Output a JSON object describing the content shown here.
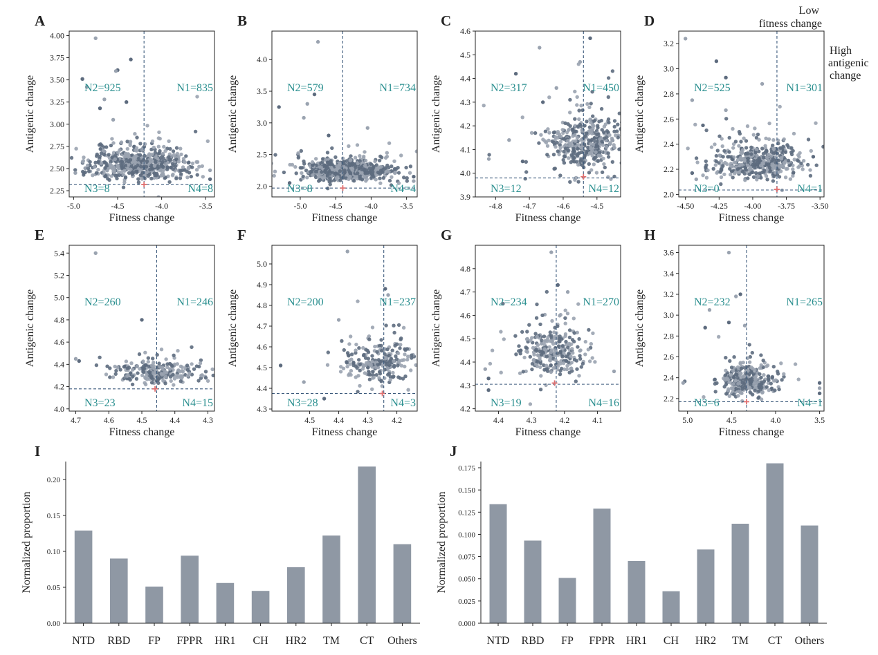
{
  "annotations": {
    "low_fitness": "Low\nfitness change",
    "high_antigenic": "High\nantigenic\nchange"
  },
  "colors": {
    "dot_dark": "#5d6b7e",
    "dot_light": "#9aa3b0",
    "threshold": "#3c5a7c",
    "quadrant_text": "#2a8f8f",
    "marker": "#e07070",
    "bar": "#8f98a4"
  },
  "chart_data": [
    {
      "id": "A",
      "type": "scatter",
      "panel_label": "A",
      "xlabel": "Fitness change",
      "ylabel": "Antigenic change",
      "xlim": [
        -5.05,
        -3.4
      ],
      "ylim": [
        2.18,
        4.05
      ],
      "xticks": [
        -5.0,
        -4.5,
        -4.0,
        -3.5
      ],
      "xtick_labels": [
        "-5.0",
        "-4.5",
        "-4.0",
        "-3.5"
      ],
      "yticks": [
        2.25,
        2.5,
        2.75,
        3.0,
        3.25,
        3.5,
        3.75,
        4.0
      ],
      "ytick_labels": [
        "2.25",
        "2.50",
        "2.75",
        "3.00",
        "3.25",
        "3.50",
        "3.75",
        "4.00"
      ],
      "threshold_x": -4.2,
      "threshold_y": 2.32,
      "marker": [
        -4.2,
        2.32
      ],
      "cluster": {
        "cx": -4.25,
        "cy": 2.5,
        "sx": 0.28,
        "sy": 0.12,
        "n": 600,
        "seed": 11
      },
      "outliers": [
        [
          -4.75,
          3.97
        ],
        [
          -4.9,
          3.51
        ],
        [
          -4.85,
          3.42
        ],
        [
          -4.5,
          3.61
        ],
        [
          -4.52,
          3.6
        ],
        [
          -4.35,
          3.73
        ],
        [
          -4.65,
          3.28
        ],
        [
          -4.7,
          3.18
        ],
        [
          -4.55,
          3.05
        ],
        [
          -4.4,
          3.25
        ],
        [
          -3.45,
          2.48
        ],
        [
          -3.45,
          2.38
        ],
        [
          -4.98,
          2.45
        ]
      ],
      "quadrants": {
        "N1": "N1=835",
        "N2": "N2=925",
        "N3": "N3=8",
        "N4": "N4=8"
      }
    },
    {
      "id": "B",
      "type": "scatter",
      "panel_label": "B",
      "xlabel": "Fitness change",
      "ylabel": "Antigenic change",
      "xlim": [
        -5.4,
        -3.35
      ],
      "ylim": [
        1.83,
        4.45
      ],
      "xticks": [
        -5.0,
        -4.5,
        -4.0,
        -3.5
      ],
      "xtick_labels": [
        "-5.0",
        "-4.5",
        "-4.0",
        "-3.5"
      ],
      "yticks": [
        2.0,
        2.5,
        3.0,
        3.5,
        4.0
      ],
      "ytick_labels": [
        "2.0",
        "2.5",
        "3.0",
        "3.5",
        "4.0"
      ],
      "threshold_x": -4.4,
      "threshold_y": 1.97,
      "marker": [
        -4.4,
        1.97
      ],
      "cluster": {
        "cx": -4.35,
        "cy": 2.2,
        "sx": 0.3,
        "sy": 0.1,
        "n": 650,
        "seed": 22
      },
      "outliers": [
        [
          -4.75,
          4.28
        ],
        [
          -4.8,
          3.45
        ],
        [
          -4.9,
          3.3
        ],
        [
          -5.3,
          3.25
        ],
        [
          -4.95,
          3.08
        ],
        [
          -4.6,
          2.8
        ],
        [
          -4.05,
          2.92
        ],
        [
          -3.4,
          2.15
        ],
        [
          -3.4,
          2.08
        ],
        [
          -5.15,
          2.05
        ]
      ],
      "quadrants": {
        "N1": "N1=734",
        "N2": "N2=579",
        "N3": "N3=8",
        "N4": "N4=4"
      }
    },
    {
      "id": "C",
      "type": "scatter",
      "panel_label": "C",
      "xlabel": "Fitness change",
      "ylabel": "Antigenic change",
      "xlim": [
        -4.86,
        -4.43
      ],
      "ylim": [
        3.9,
        4.6
      ],
      "xticks": [
        -4.8,
        -4.7,
        -4.6,
        -4.5
      ],
      "xtick_labels": [
        "-4.8",
        "-4.7",
        "-4.6",
        "-4.5"
      ],
      "yticks": [
        3.9,
        4.0,
        4.1,
        4.2,
        4.3,
        4.4,
        4.5,
        4.6
      ],
      "ytick_labels": [
        "3.9",
        "4.0",
        "4.1",
        "4.2",
        "4.3",
        "4.4",
        "4.5",
        "4.6"
      ],
      "threshold_x": -4.54,
      "threshold_y": 3.98,
      "marker": [
        -4.54,
        3.985
      ],
      "cluster": {
        "cx": -4.53,
        "cy": 4.1,
        "sx": 0.055,
        "sy": 0.07,
        "n": 420,
        "seed": 33
      },
      "outliers": [
        [
          -4.67,
          4.53
        ],
        [
          -4.52,
          4.57
        ],
        [
          -4.55,
          4.47
        ],
        [
          -4.74,
          4.42
        ],
        [
          -4.82,
          4.06
        ],
        [
          -4.72,
          4.05
        ],
        [
          -4.76,
          4.14
        ],
        [
          -4.66,
          4.3
        ],
        [
          -4.62,
          4.36
        ]
      ],
      "quadrants": {
        "N1": "N1=450",
        "N2": "N2=317",
        "N3": "N3=12",
        "N4": "N4=12"
      }
    },
    {
      "id": "D",
      "type": "scatter",
      "panel_label": "D",
      "xlabel": "Fitness change",
      "ylabel": "Antigenic change",
      "xlim": [
        -4.55,
        -3.47
      ],
      "ylim": [
        1.98,
        3.3
      ],
      "xticks": [
        -4.5,
        -4.25,
        -4.0,
        -3.75,
        -3.5
      ],
      "xtick_labels": [
        "-4.50",
        "-4.25",
        "-4.00",
        "-3.75",
        "-3.50"
      ],
      "yticks": [
        2.0,
        2.2,
        2.4,
        2.6,
        2.8,
        3.0,
        3.2
      ],
      "ytick_labels": [
        "2.0",
        "2.2",
        "2.4",
        "2.6",
        "2.8",
        "3.0",
        "3.2"
      ],
      "threshold_x": -3.82,
      "threshold_y": 2.035,
      "marker": [
        -3.82,
        2.04
      ],
      "cluster": {
        "cx": -3.95,
        "cy": 2.22,
        "sx": 0.16,
        "sy": 0.1,
        "n": 450,
        "seed": 44
      },
      "outliers": [
        [
          -4.5,
          3.24
        ],
        [
          -4.27,
          3.06
        ],
        [
          -3.93,
          2.88
        ],
        [
          -4.2,
          2.93
        ],
        [
          -4.45,
          2.75
        ],
        [
          -4.37,
          2.55
        ],
        [
          -4.2,
          2.67
        ],
        [
          -4.45,
          2.17
        ],
        [
          -4.42,
          2.12
        ],
        [
          -3.55,
          2.3
        ]
      ],
      "quadrants": {
        "N1": "N1=301",
        "N2": "N2=525",
        "N3": "N3=0",
        "N4": "N4=1"
      }
    },
    {
      "id": "E",
      "type": "scatter",
      "panel_label": "E",
      "xlabel": "Fitness change",
      "ylabel": "Antigenic change",
      "xlim": [
        4.72,
        4.28
      ],
      "ylim": [
        3.98,
        5.47
      ],
      "xticks": [
        4.7,
        4.6,
        4.5,
        4.4,
        4.3
      ],
      "xtick_labels": [
        "4.7",
        "4.6",
        "4.5",
        "4.4",
        "4.3"
      ],
      "yticks": [
        4.0,
        4.2,
        4.4,
        4.6,
        4.8,
        5.0,
        5.2,
        5.4
      ],
      "ytick_labels": [
        "4.0",
        "4.2",
        "4.4",
        "4.6",
        "4.8",
        "5.0",
        "5.2",
        "5.4"
      ],
      "threshold_x": 4.455,
      "threshold_y": 4.18,
      "marker": [
        4.46,
        4.18
      ],
      "cluster": {
        "cx": 4.47,
        "cy": 4.3,
        "sx": 0.07,
        "sy": 0.07,
        "n": 240,
        "seed": 55
      },
      "outliers": [
        [
          4.64,
          5.4
        ],
        [
          4.5,
          4.8
        ],
        [
          4.7,
          4.45
        ],
        [
          4.69,
          4.43
        ],
        [
          4.32,
          4.3
        ]
      ],
      "quadrants": {
        "N1": "N1=246",
        "N2": "N2=260",
        "N3": "N3=23",
        "N4": "N4=15"
      }
    },
    {
      "id": "F",
      "type": "scatter",
      "panel_label": "F",
      "xlabel": "Fitness change",
      "ylabel": "Antigenic change",
      "xlim": [
        4.63,
        4.13
      ],
      "ylim": [
        4.29,
        5.09
      ],
      "xticks": [
        4.5,
        4.4,
        4.3,
        4.2
      ],
      "xtick_labels": [
        "4.5",
        "4.4",
        "4.3",
        "4.2"
      ],
      "yticks": [
        4.3,
        4.4,
        4.5,
        4.6,
        4.7,
        4.8,
        4.9,
        5.0
      ],
      "ytick_labels": [
        "4.3",
        "4.4",
        "4.5",
        "4.6",
        "4.7",
        "4.8",
        "4.9",
        "5.0"
      ],
      "threshold_x": 4.245,
      "threshold_y": 4.375,
      "marker": [
        4.25,
        4.375
      ],
      "cluster": {
        "cx": 4.26,
        "cy": 4.5,
        "sx": 0.06,
        "sy": 0.07,
        "n": 240,
        "seed": 66
      },
      "outliers": [
        [
          4.37,
          5.06
        ],
        [
          4.24,
          4.88
        ],
        [
          4.23,
          4.85
        ],
        [
          4.6,
          4.51
        ],
        [
          4.52,
          4.43
        ],
        [
          4.45,
          4.35
        ],
        [
          4.4,
          4.73
        ]
      ],
      "quadrants": {
        "N1": "N1=237",
        "N2": "N2=200",
        "N3": "N3=28",
        "N4": "N4=3"
      }
    },
    {
      "id": "G",
      "type": "scatter",
      "panel_label": "G",
      "xlabel": "Fitness change",
      "ylabel": "Antigenic change",
      "xlim": [
        4.47,
        4.03
      ],
      "ylim": [
        4.19,
        4.9
      ],
      "xticks": [
        4.4,
        4.3,
        4.2,
        4.1
      ],
      "xtick_labels": [
        "4.4",
        "4.3",
        "4.2",
        "4.1"
      ],
      "yticks": [
        4.2,
        4.3,
        4.4,
        4.5,
        4.6,
        4.7,
        4.8
      ],
      "ytick_labels": [
        "4.2",
        "4.3",
        "4.4",
        "4.5",
        "4.6",
        "4.7",
        "4.8"
      ],
      "threshold_x": 4.225,
      "threshold_y": 4.305,
      "marker": [
        4.23,
        4.31
      ],
      "cluster": {
        "cx": 4.235,
        "cy": 4.42,
        "sx": 0.05,
        "sy": 0.08,
        "n": 270,
        "seed": 77
      },
      "outliers": [
        [
          4.24,
          4.87
        ],
        [
          4.22,
          4.73
        ],
        [
          4.44,
          4.37
        ],
        [
          4.43,
          4.33
        ],
        [
          4.05,
          4.36
        ],
        [
          4.43,
          4.28
        ],
        [
          4.19,
          4.7
        ]
      ],
      "quadrants": {
        "N1": "N1=270",
        "N2": "N2=234",
        "N3": "N3=19",
        "N4": "N4=16"
      }
    },
    {
      "id": "H",
      "type": "scatter",
      "panel_label": "H",
      "xlabel": "Fitness change",
      "ylabel": "Antigenic change",
      "xlim": [
        5.1,
        3.45
      ],
      "ylim": [
        2.08,
        3.67
      ],
      "xticks": [
        5.0,
        4.5,
        4.0,
        3.5
      ],
      "xtick_labels": [
        "5.0",
        "4.5",
        "4.0",
        "3.5"
      ],
      "yticks": [
        2.2,
        2.4,
        2.6,
        2.8,
        3.0,
        3.2,
        3.4,
        3.6
      ],
      "ytick_labels": [
        "2.2",
        "2.4",
        "2.6",
        "2.8",
        "3.0",
        "3.2",
        "3.4",
        "3.6"
      ],
      "threshold_x": 4.33,
      "threshold_y": 2.17,
      "marker": [
        4.33,
        2.17
      ],
      "cluster": {
        "cx": 4.33,
        "cy": 2.33,
        "sx": 0.17,
        "sy": 0.1,
        "n": 300,
        "seed": 88
      },
      "outliers": [
        [
          4.53,
          3.6
        ],
        [
          4.4,
          3.2
        ],
        [
          4.45,
          3.18
        ],
        [
          4.53,
          2.93
        ],
        [
          4.75,
          3.05
        ],
        [
          4.8,
          2.88
        ],
        [
          5.05,
          2.35
        ],
        [
          3.5,
          2.35
        ],
        [
          3.5,
          2.3
        ],
        [
          3.5,
          2.25
        ],
        [
          4.35,
          2.9
        ]
      ],
      "quadrants": {
        "N1": "N1=265",
        "N2": "N2=232",
        "N3": "N3=6",
        "N4": "N4=1"
      }
    },
    {
      "id": "I",
      "type": "bar",
      "panel_label": "I",
      "xlabel": "",
      "ylabel": "Normalized proportion",
      "categories": [
        "NTD",
        "RBD",
        "FP",
        "FPPR",
        "HR1",
        "CH",
        "HR2",
        "TM",
        "CT",
        "Others"
      ],
      "values": [
        0.129,
        0.09,
        0.051,
        0.094,
        0.056,
        0.045,
        0.078,
        0.122,
        0.218,
        0.11
      ],
      "ylim": [
        0,
        0.225
      ],
      "yticks": [
        0.0,
        0.05,
        0.1,
        0.15,
        0.2
      ],
      "ytick_labels": [
        "0.00",
        "0.05",
        "0.10",
        "0.15",
        "0.20"
      ]
    },
    {
      "id": "J",
      "type": "bar",
      "panel_label": "J",
      "xlabel": "",
      "ylabel": "Normalized proportion",
      "categories": [
        "NTD",
        "RBD",
        "FP",
        "FPPR",
        "HR1",
        "CH",
        "HR2",
        "TM",
        "CT",
        "Others"
      ],
      "values": [
        0.134,
        0.093,
        0.051,
        0.129,
        0.07,
        0.036,
        0.083,
        0.112,
        0.18,
        0.11
      ],
      "ylim": [
        0,
        0.182
      ],
      "yticks": [
        0.0,
        0.025,
        0.05,
        0.075,
        0.1,
        0.125,
        0.15,
        0.175
      ],
      "ytick_labels": [
        "0.000",
        "0.025",
        "0.050",
        "0.075",
        "0.100",
        "0.125",
        "0.150",
        "0.175"
      ]
    }
  ]
}
